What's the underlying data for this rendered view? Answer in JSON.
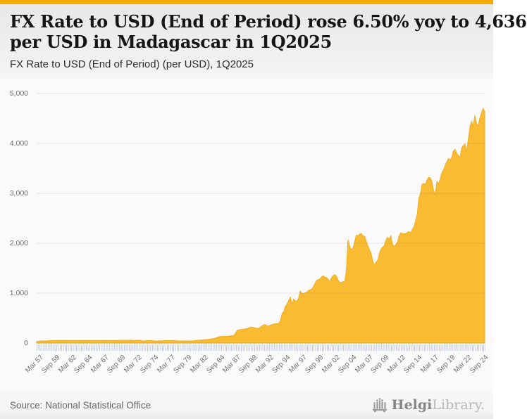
{
  "page": {
    "title_line1": "FX Rate to USD (End of Period) rose 6.50% yoy to 4,636",
    "title_line2": "per USD in Madagascar in 1Q2025",
    "subtitle": "FX Rate to USD (End of Period) (per USD), 1Q2025",
    "source": "Source: National Statistical Office",
    "brand": {
      "name_primary": "Helgi",
      "name_secondary": "Library."
    }
  },
  "colors": {
    "accent_bar": "#F5AB00",
    "area_fill": "#F9BB32",
    "area_stroke": "#F3AC1B",
    "gridline": "rgba(110,110,110,0.14)",
    "axis_text": "#6e6e6e",
    "chart_background": "#fafafa"
  },
  "chart_data": {
    "type": "area",
    "title": "FX Rate to USD (End of Period) (per USD), 1Q2025",
    "series_name": "FX Rate to USD (End of Period), Madagascar (per USD)",
    "frequency": "quarterly",
    "x_start": "Mar 1957",
    "x_end": "Mar 2025",
    "latest_value": 4636,
    "yoy_change_pct": 6.5,
    "ylim": [
      0,
      5000
    ],
    "grid": "horizontal",
    "legend": "none",
    "y_tick_labels": [
      "0",
      "1,000",
      "2,000",
      "3,000",
      "4,000",
      "5,000"
    ],
    "x_tick_every_n_points": 10,
    "x_tick_labels": [
      "Mar 57",
      "Sep 59",
      "Mar 62",
      "Sep 64",
      "Mar 67",
      "Sep 69",
      "Mar 72",
      "Sep 74",
      "Mar 77",
      "Sep 79",
      "Mar 82",
      "Sep 84",
      "Mar 87",
      "Sep 89",
      "Mar 92",
      "Sep 94",
      "Mar 97",
      "Sep 99",
      "Mar 02",
      "Sep 04",
      "Mar 07",
      "Sep 09",
      "Mar 12",
      "Sep 14",
      "Mar 17",
      "Sep 19",
      "Mar 22",
      "Sep 24"
    ],
    "values": [
      35,
      35,
      42,
      42,
      42,
      42,
      42,
      49,
      49,
      49,
      49,
      49,
      49,
      49,
      49,
      49,
      49,
      49,
      49,
      49,
      49,
      49,
      49,
      49,
      49,
      49,
      49,
      49,
      49,
      49,
      49,
      49,
      49,
      49,
      49,
      49,
      49,
      49,
      49,
      49,
      49,
      49,
      49,
      49,
      49,
      49,
      49,
      49,
      49,
      49,
      56,
      56,
      56,
      56,
      56,
      56,
      56,
      56,
      55,
      52,
      51,
      51,
      50,
      51,
      46,
      43,
      43,
      47,
      48,
      49,
      48,
      45,
      43,
      40,
      44,
      45,
      45,
      47,
      49,
      50,
      50,
      49,
      49,
      48,
      47,
      45,
      44,
      42,
      43,
      43,
      42,
      40,
      42,
      42,
      43,
      45,
      50,
      55,
      58,
      58,
      60,
      66,
      70,
      70,
      72,
      77,
      82,
      86,
      95,
      105,
      118,
      128,
      130,
      132,
      134,
      133,
      135,
      140,
      148,
      150,
      160,
      215,
      260,
      266,
      270,
      275,
      280,
      285,
      290,
      310,
      320,
      318,
      310,
      300,
      295,
      298,
      320,
      350,
      365,
      367,
      340,
      345,
      360,
      373,
      380,
      385,
      390,
      396,
      450,
      590,
      630,
      735,
      780,
      850,
      920,
      780,
      880,
      850,
      830,
      900,
      1040,
      1000,
      990,
      1010,
      1020,
      1050,
      1070,
      1080,
      1130,
      1200,
      1260,
      1270,
      1290,
      1320,
      1350,
      1320,
      1310,
      1280,
      1230,
      1310,
      1350,
      1370,
      1340,
      1260,
      1220,
      1210,
      1230,
      1240,
      1450,
      2070,
      1940,
      1870,
      1900,
      2020,
      2160,
      2150,
      2180,
      2200,
      2150,
      2140,
      2050,
      1950,
      1880,
      1790,
      1650,
      1560,
      1620,
      1655,
      1780,
      1880,
      1920,
      1950,
      2060,
      2120,
      2080,
      2150,
      1980,
      1940,
      1970,
      2020,
      2140,
      2210,
      2190,
      2195,
      2190,
      2220,
      2230,
      2207,
      2270,
      2330,
      2440,
      2580,
      2900,
      3000,
      3180,
      3200,
      3180,
      3270,
      3320,
      3310,
      3220,
      3050,
      2980,
      3240,
      3190,
      3290,
      3420,
      3470,
      3560,
      3630,
      3700,
      3666,
      3720,
      3850,
      3880,
      3800,
      3760,
      3720,
      3900,
      3958,
      3990,
      3830,
      4080,
      4320,
      4440,
      4330,
      4560,
      4400,
      4353,
      4500,
      4600,
      4700,
      4636
    ]
  }
}
